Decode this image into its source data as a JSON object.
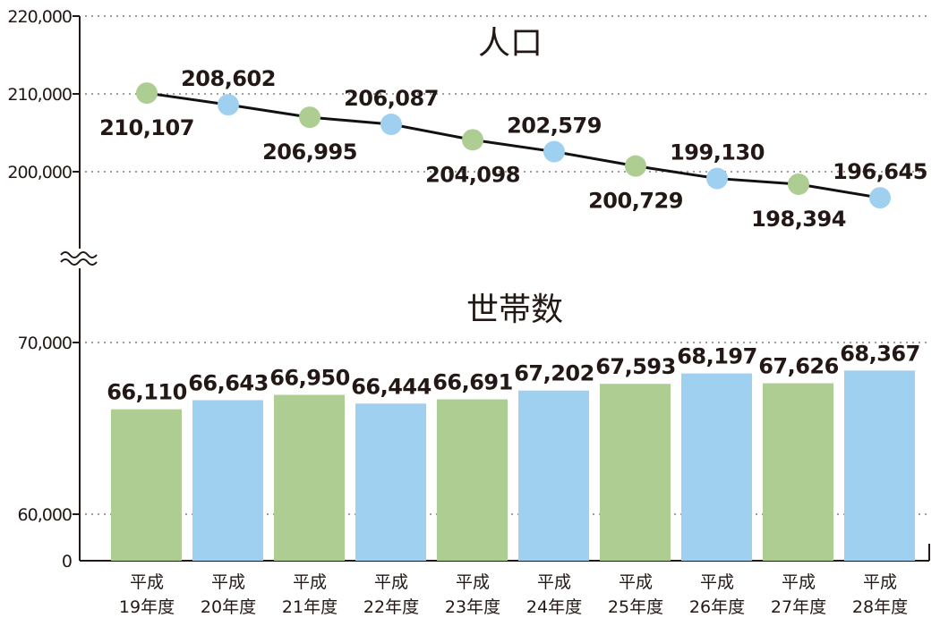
{
  "chart_data": [
    {
      "type": "line",
      "title": "人口",
      "categories": [
        "平成19年度",
        "平成20年度",
        "平成21年度",
        "平成22年度",
        "平成23年度",
        "平成24年度",
        "平成25年度",
        "平成26年度",
        "平成27年度",
        "平成28年度"
      ],
      "values": [
        210107,
        208602,
        206995,
        206087,
        204098,
        202579,
        200729,
        199130,
        198394,
        196645
      ],
      "value_labels": [
        "210,107",
        "208,602",
        "206,995",
        "206,087",
        "204,098",
        "202,579",
        "200,729",
        "199,130",
        "198,394",
        "196,645"
      ],
      "yticks": [
        200000,
        210000,
        220000
      ],
      "ytick_labels": [
        "200,000",
        "210,000",
        "220,000"
      ],
      "ylim": [
        200000,
        220000
      ],
      "axis_break": true,
      "grid": true,
      "point_colors": [
        "#aecd93",
        "#9fd0ef"
      ]
    },
    {
      "type": "bar",
      "title": "世帯数",
      "categories": [
        "平成19年度",
        "平成20年度",
        "平成21年度",
        "平成22年度",
        "平成23年度",
        "平成24年度",
        "平成25年度",
        "平成26年度",
        "平成27年度",
        "平成28年度"
      ],
      "values": [
        66110,
        66643,
        66950,
        66444,
        66691,
        67202,
        67593,
        68197,
        67626,
        68367
      ],
      "value_labels": [
        "66,110",
        "66,643",
        "66,950",
        "66,444",
        "66,691",
        "67,202",
        "67,593",
        "68,197",
        "67,626",
        "68,367"
      ],
      "yticks": [
        0,
        60000,
        70000
      ],
      "ytick_labels": [
        "0",
        "60,000",
        "70,000"
      ],
      "ylim": [
        60000,
        70000
      ],
      "grid": true,
      "bar_colors": [
        "#aecd93",
        "#9fd0ef"
      ]
    }
  ],
  "x_labels": [
    [
      "平成",
      "19年度"
    ],
    [
      "平成",
      "20年度"
    ],
    [
      "平成",
      "21年度"
    ],
    [
      "平成",
      "22年度"
    ],
    [
      "平成",
      "23年度"
    ],
    [
      "平成",
      "24年度"
    ],
    [
      "平成",
      "25年度"
    ],
    [
      "平成",
      "26年度"
    ],
    [
      "平成",
      "27年度"
    ],
    [
      "平成",
      "28年度"
    ]
  ]
}
